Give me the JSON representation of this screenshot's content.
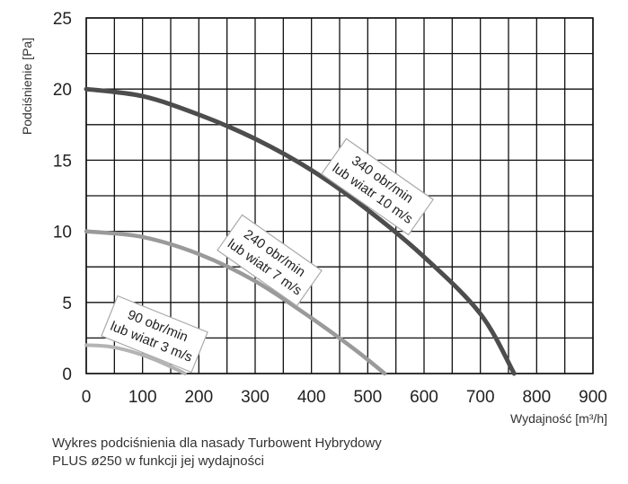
{
  "chart_data": {
    "type": "line",
    "title": "",
    "xlabel": "Wydajność [m³/h]",
    "ylabel": "Podciśnienie [Pa]",
    "xlim": [
      0,
      900
    ],
    "ylim": [
      0,
      25
    ],
    "xticks": [
      "0",
      "100",
      "200",
      "300",
      "400",
      "500",
      "600",
      "700",
      "800",
      "900"
    ],
    "yticks": [
      "0",
      "5",
      "10",
      "15",
      "20",
      "25"
    ],
    "grid": true,
    "series": [
      {
        "name_lines": [
          "90 obr/min",
          "lub wiatr 3 m/s"
        ],
        "color": "#b4b4b4",
        "x": [
          0,
          40,
          80,
          120,
          160,
          175
        ],
        "y": [
          2.0,
          1.9,
          1.55,
          1.0,
          0.3,
          0.0
        ]
      },
      {
        "name_lines": [
          "240 obr/min",
          "lub wiatr 7 m/s"
        ],
        "color": "#9a9a9a",
        "x": [
          0,
          100,
          200,
          300,
          400,
          480,
          530
        ],
        "y": [
          10.0,
          9.6,
          8.4,
          6.5,
          3.9,
          1.6,
          0.0
        ]
      },
      {
        "name_lines": [
          "340 obr/min",
          "lub wiatr 10 m/s"
        ],
        "color": "#4d4d4d",
        "x": [
          0,
          100,
          200,
          300,
          400,
          500,
          600,
          700,
          760
        ],
        "y": [
          20.0,
          19.5,
          18.2,
          16.5,
          14.3,
          11.5,
          8.2,
          4.2,
          0.0
        ]
      }
    ]
  },
  "caption": {
    "line1": "Wykres podciśnienia dla nasady Turbowent Hybrydowy",
    "line2": "PLUS ø250 w funkcji jej wydajności"
  }
}
